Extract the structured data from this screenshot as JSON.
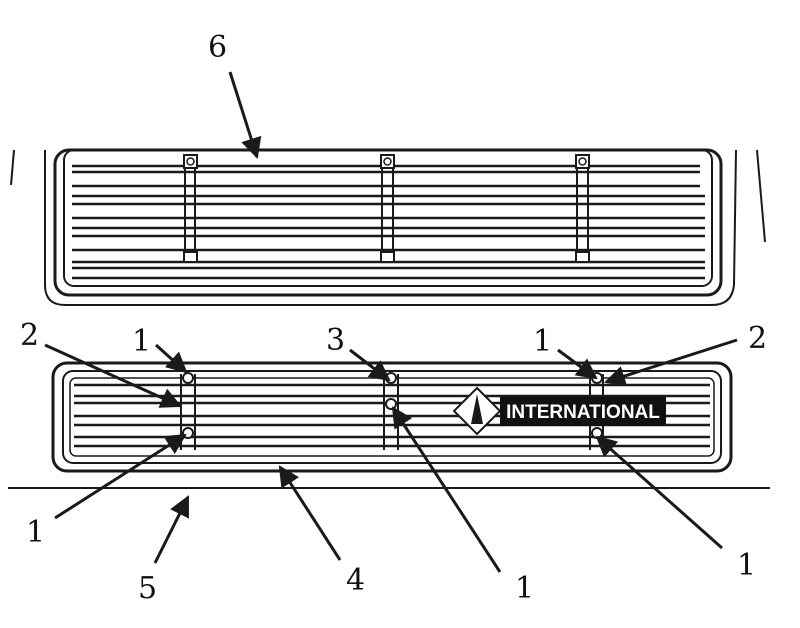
{
  "figure": {
    "callouts": {
      "upper_grille": "6",
      "left_retainer_upper": "1",
      "left_bar": "2",
      "center_bar": "3",
      "right_retainer_upper": "1",
      "right_bar": "2",
      "left_retainer_lower": "1",
      "center_retainer_lower": "1",
      "right_retainer_lower": "1",
      "bumper_edge": "5",
      "lower_grille": "4"
    },
    "emblem": {
      "brand": "INTERNATIONAL"
    }
  }
}
